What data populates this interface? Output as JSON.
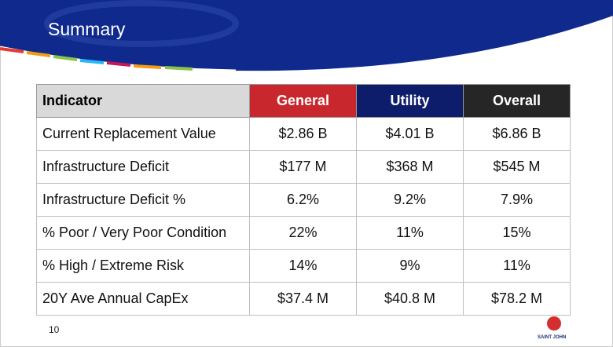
{
  "header": {
    "title": "Summary"
  },
  "table": {
    "columns": [
      "Indicator",
      "General",
      "Utility",
      "Overall"
    ],
    "column_colors": [
      null,
      "#c8282d",
      "#0d1d6b",
      "#262626"
    ],
    "rows": [
      [
        "Current Replacement Value",
        "$2.86 B",
        "$4.01 B",
        "$6.86 B"
      ],
      [
        "Infrastructure Deficit",
        "$177 M",
        "$368 M",
        "$545 M"
      ],
      [
        "Infrastructure Deficit %",
        "6.2%",
        "9.2%",
        "7.9%"
      ],
      [
        "% Poor / Very Poor Condition",
        "22%",
        "11%",
        "15%"
      ],
      [
        "% High / Extreme Risk",
        "14%",
        "9%",
        "11%"
      ],
      [
        "20Y Ave Annual CapEx",
        "$37.4 M",
        "$40.8 M",
        "$78.2 M"
      ]
    ]
  },
  "footer": {
    "page_number": "10",
    "logo_text": "SAINT JOHN"
  }
}
